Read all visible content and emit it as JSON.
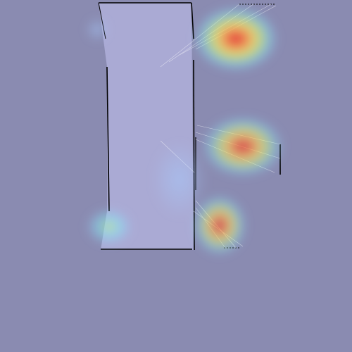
{
  "colors": {
    "background": "#8a8bb1",
    "room_fill": "#aaaad4",
    "wall": "#000000",
    "scan_line": "#ffffff"
  },
  "heatmap_palette": [
    "#a8ccff",
    "#7ff0ff",
    "#c8ff80",
    "#ffe060",
    "#ff8040",
    "#e83030"
  ]
}
